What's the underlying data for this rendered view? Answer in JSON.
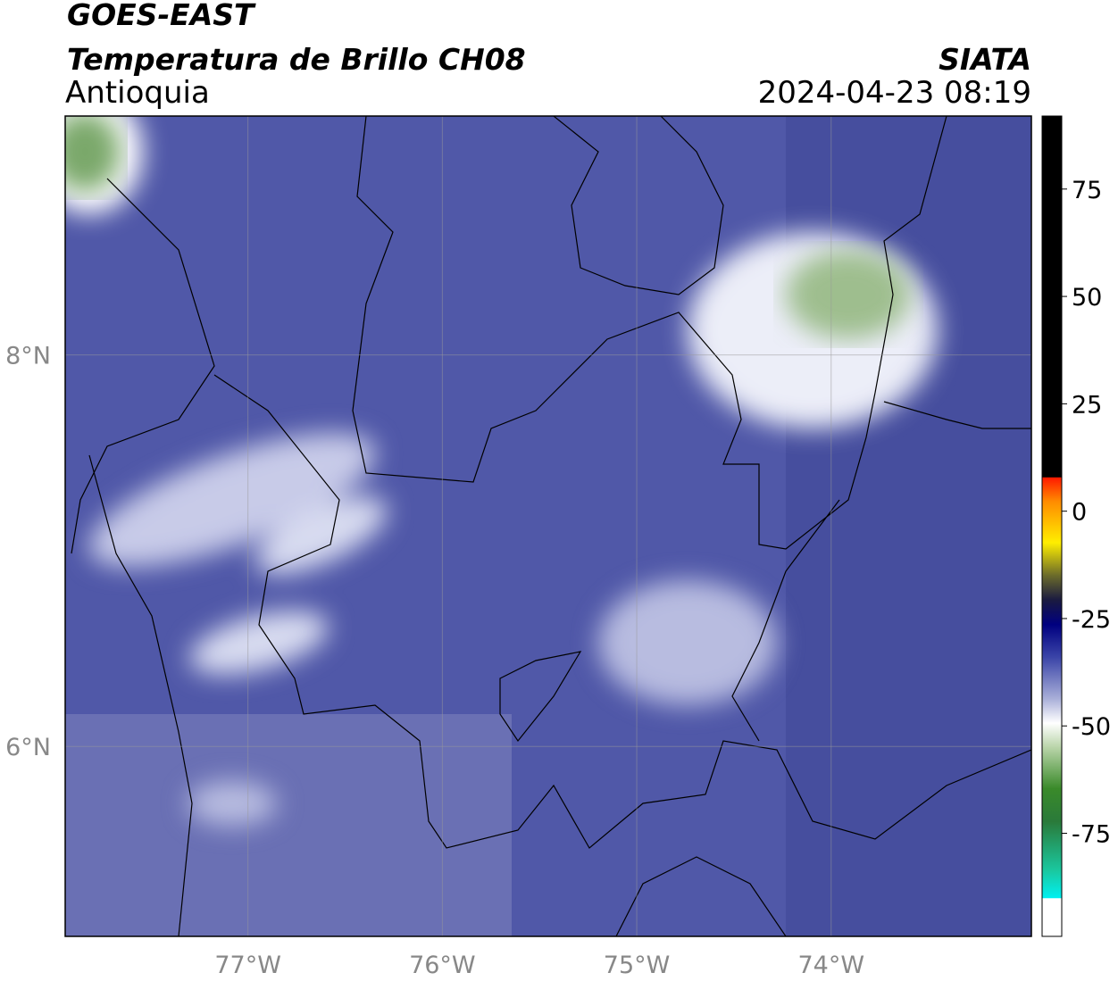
{
  "header": {
    "satellite": "GOES-EAST",
    "product": "Temperatura de Brillo CH08",
    "region": "Antioquia",
    "agency": "SIATA",
    "timestamp": "2024-04-23 08:19"
  },
  "chart_data": {
    "type": "map",
    "xlim": [
      -77.94,
      -72.97
    ],
    "ylim": [
      5.03,
      9.22
    ],
    "xticks": [
      {
        "value": -77,
        "label": "77°W"
      },
      {
        "value": -76,
        "label": "76°W"
      },
      {
        "value": -75,
        "label": "75°W"
      },
      {
        "value": -74,
        "label": "74°W"
      }
    ],
    "yticks": [
      {
        "value": 6,
        "label": "6°N"
      },
      {
        "value": 8,
        "label": "8°N"
      }
    ],
    "grid": true,
    "colorbar": {
      "lim": [
        -99,
        92
      ],
      "ticks": [
        -75,
        -50,
        -25,
        0,
        25,
        50,
        75
      ]
    }
  }
}
